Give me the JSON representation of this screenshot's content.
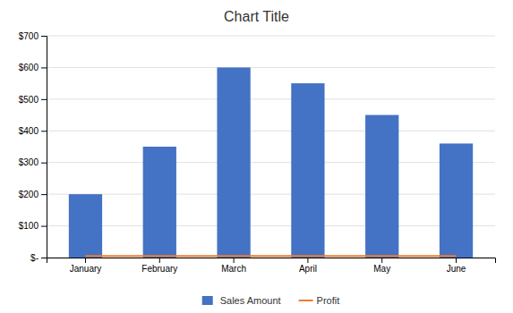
{
  "chart_data": {
    "type": "bar",
    "title": "Chart Title",
    "categories": [
      "January",
      "February",
      "March",
      "April",
      "May",
      "June"
    ],
    "series": [
      {
        "name": "Sales Amount",
        "type": "bar",
        "color": "#4472C4",
        "values": [
          200,
          350,
          600,
          550,
          450,
          360
        ]
      },
      {
        "name": "Profit",
        "type": "line",
        "color": "#ED7D31",
        "values": [
          5,
          5,
          5,
          5,
          5,
          5
        ]
      }
    ],
    "ylim": [
      0,
      700
    ],
    "yticks": [
      {
        "value": 0,
        "label": "$-"
      },
      {
        "value": 100,
        "label": "$100"
      },
      {
        "value": 200,
        "label": "$200"
      },
      {
        "value": 300,
        "label": "$300"
      },
      {
        "value": 400,
        "label": "$400"
      },
      {
        "value": 500,
        "label": "$500"
      },
      {
        "value": 600,
        "label": "$600"
      },
      {
        "value": 700,
        "label": "$700"
      }
    ],
    "grid": true,
    "legend": "bottom"
  }
}
